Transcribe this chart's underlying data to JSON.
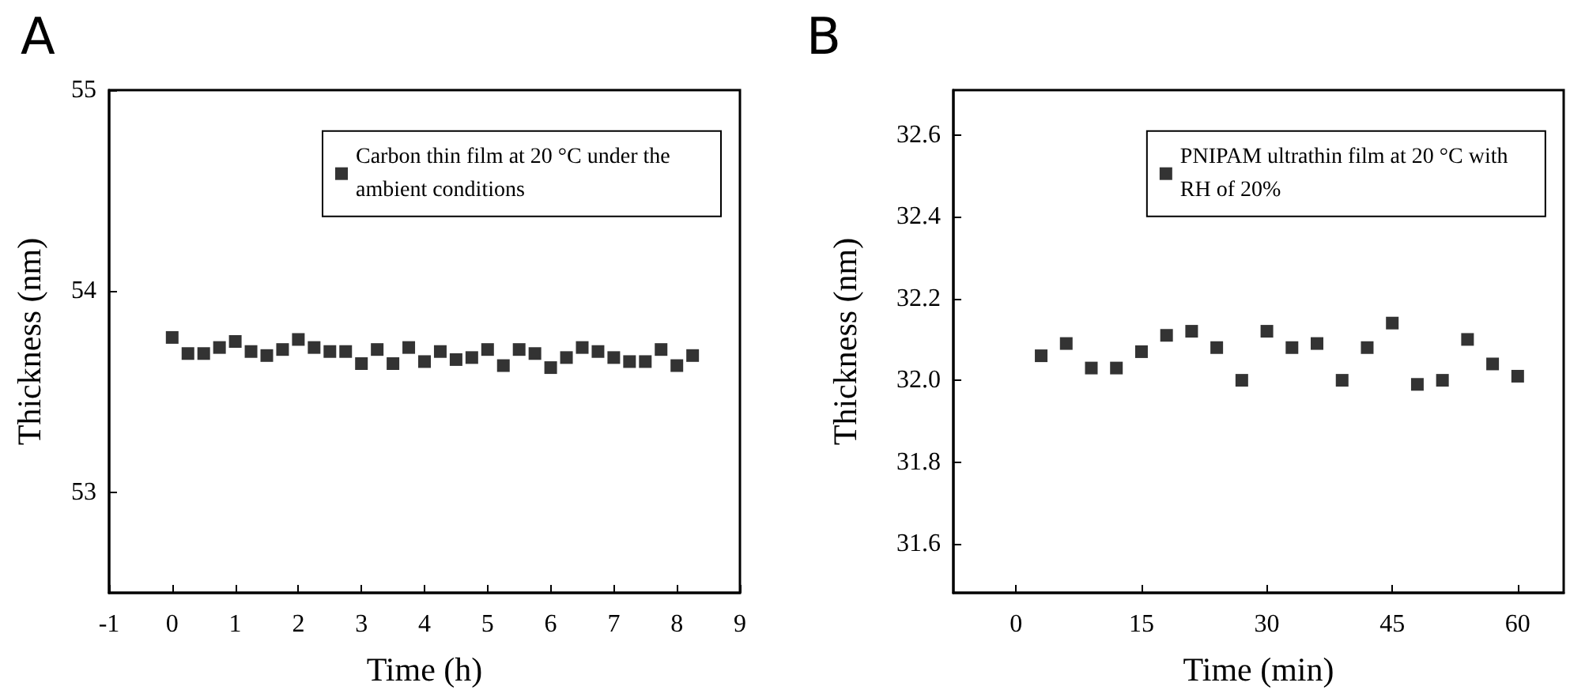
{
  "chart_data": [
    {
      "type": "scatter",
      "title": "A",
      "xlabel": "Time (h)",
      "ylabel": "Thickness (nm)",
      "marker": "square",
      "legend": "top right",
      "grid": false,
      "x": [
        0,
        0.25,
        0.5,
        0.75,
        1,
        1.25,
        1.5,
        1.75,
        2,
        2.25,
        2.5,
        2.75,
        3,
        3.25,
        3.5,
        3.75,
        4,
        4.25,
        4.5,
        4.75,
        5,
        5.25,
        5.5,
        5.75,
        6,
        6.25,
        6.5,
        6.75,
        7,
        7.25,
        7.5,
        7.75,
        8,
        8.25
      ],
      "series": [
        {
          "name": "Carbon thin film at 20 °C under the ambient conditions",
          "color": "#000000",
          "values": [
            53.77,
            53.69,
            53.69,
            53.72,
            53.75,
            53.7,
            53.68,
            53.71,
            53.76,
            53.72,
            53.7,
            53.7,
            53.64,
            53.71,
            53.64,
            53.72,
            53.65,
            53.7,
            53.66,
            53.67,
            53.71,
            53.63,
            53.71,
            53.69,
            53.62,
            53.67,
            53.72,
            53.7,
            53.67,
            53.65,
            53.65,
            53.71,
            53.63,
            53.68
          ]
        }
      ],
      "xlim": [
        -1,
        9
      ],
      "xticks": [
        -1,
        0,
        1,
        2,
        3,
        4,
        5,
        6,
        7,
        8,
        9
      ],
      "ylim": [
        52.5,
        55
      ],
      "yticks": [
        53,
        54,
        55
      ]
    },
    {
      "type": "scatter",
      "title": "B",
      "xlabel": "Time (min)",
      "ylabel": "Thickness (nm)",
      "marker": "square",
      "legend": "top right",
      "grid": false,
      "x": [
        3,
        6,
        9,
        12,
        15,
        18,
        21,
        24,
        27,
        30,
        33,
        36,
        39,
        42,
        45,
        48,
        51,
        54,
        57,
        60
      ],
      "series": [
        {
          "name": "PNIPAM ultrathin film at 20 °C with RH of 20%",
          "color": "#000000",
          "values": [
            32.06,
            32.09,
            32.03,
            32.03,
            32.07,
            32.11,
            32.12,
            32.08,
            32.0,
            32.12,
            32.08,
            32.09,
            32.0,
            32.08,
            32.14,
            31.99,
            32.0,
            32.1,
            32.04,
            32.01
          ]
        }
      ],
      "xlim": [
        -7.5,
        65.5
      ],
      "xticks": [
        0,
        15,
        30,
        45,
        60
      ],
      "ylim": [
        31.48,
        32.71
      ],
      "yticks": [
        {
          "value": 31.6,
          "label": "31.6"
        },
        {
          "value": 31.8,
          "label": "31.8"
        },
        {
          "value": 32.0,
          "label": "32.0"
        },
        {
          "value": 32.2,
          "label": "32.2"
        },
        {
          "value": 32.4,
          "label": "32.4"
        },
        {
          "value": 32.6,
          "label": "32.6"
        }
      ]
    }
  ]
}
